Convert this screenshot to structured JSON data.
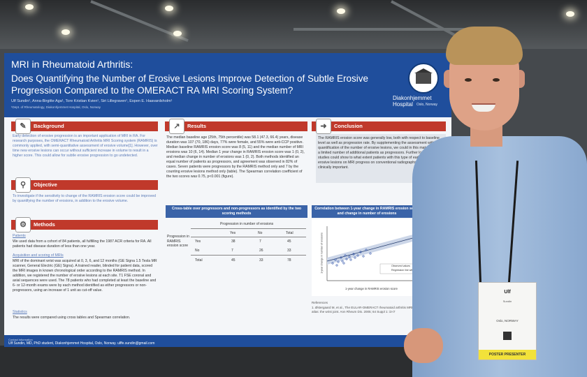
{
  "poster": {
    "title_line1": "MRI in Rheumatoid Arthritis:",
    "title_line2": "Does Quantifying the Number of Erosive Lesions Improve Detection of Subtle Erosive Progression Compared to the OMERACT RA MRI Scoring System?",
    "authors": "Ulf Sundin¹, Anna-Birgitte Aga¹, Tore Kristian Kvien¹, Siri Lillegraven¹, Espen E. Haavardsholm¹",
    "affiliation": "¹Dept. of Rheumatology, Diakonhjemmet Hospital, Oslo, Norway",
    "hospital": "Diakonhjemmet Hospital",
    "hospital_city": "Oslo, Norway",
    "background": {
      "heading": "Background",
      "text": "Early detection of erosive progression is an important application of MRI in RA. For research purposes, the OMERACT Rheumatoid Arthritis MRI Scoring system (RAMRIS) is commonly applied, with semi-quantitative assessment of erosive volume[1]. However, over time new erosive lesions can occur without sufficient increase in volume to result in a higher score. This could allow for subtle erosive progression to go undetected."
    },
    "objective": {
      "heading": "Objective",
      "text": "To investigate if the sensitivity to change of the RAMRIS erosion score could be improved by quantifying the number of erosions, in addition to the erosive volume."
    },
    "methods": {
      "heading": "Methods",
      "patients_label": "Patients",
      "patients_text": "We used data from a cohort of 84 patients, all fulfilling the 1987 ACR criteria for RA. All patients had disease duration of less than one year.",
      "mri_label": "Acquisition and scoring of MRIs",
      "mri_text": "MRI of the dominant wrist was acquired at 0, 3, 6, and 12 months (GE Signa 1.5 Tesla MR scanner, General Electric (GE) Signa). A trained reader, blinded for patient data, scored the MRI images in known chronological order according to the RAMRIS method. In addition, we registered the number of erosive lesions at each site. T1 FSE coronal and axial sequences were used. The 78 patients who had completed at least the baseline and 6- or 12-month exams were by each method identified as either progressors or non-progressors, using an increase of 1 unit as cut-off value.",
      "stats_label": "Statistics",
      "stats_text": "The results were compared using cross tables and Spearman correlation."
    },
    "results": {
      "heading": "Results",
      "text": "The median baseline age (25th, 75th percentile) was 58.1 (47.3, 66.4) years, disease duration was 107 (70, 186) days, 77% were female, and 55% were anti-CCP positive. Median baseline RAMRIS erosion score was 8 (5, 11) and the median number of MRI erosions was 10 (6, 14). Median 1 year change in RAMRIS erosion score was 1 (0, 2), and median change in number of erosions was 1 (0, 2). Both methods identified an equal number of patients as progressors, and agreement was observed in 82% of cases. Seven patients were progressors by the RAMRIS method only and 7 by the counting erosive lesions method only (table). The Spearman correlation coefficient of the two scores was 0.75, p<0.001 (figure)."
    },
    "conclusion": {
      "heading": "Conclusion",
      "text": "The RAMRIS erosion score was generally low, both with respect to baseline level as well as progression rate. By supplementing the assessment with quantification of the number of erosive lesions, we could in this material identify a limited number of additional patients as progressors. Further longitudinal studies could show to what extent patients with this type of early minimal erosive lesions on MRI progress on conventional radiographs, and if this is clinically important."
    },
    "table": {
      "title": "Cross-table over progressors and non-progressors as identified by the two scoring methods",
      "group_header": "Progression in number of erosions",
      "row_group": "Progression in RAMRIS erosion score",
      "col_headers": [
        "Yes",
        "No",
        "Total"
      ],
      "rows": [
        {
          "label": "Yes",
          "values": [
            "38",
            "7",
            "45"
          ]
        },
        {
          "label": "No",
          "values": [
            "7",
            "26",
            "33"
          ]
        },
        {
          "label": "Total",
          "values": [
            "45",
            "33",
            "78"
          ]
        }
      ]
    },
    "figure": {
      "title": "Correlation between 1-year change in RAMRIS erosion score and change in number of erosions",
      "xlabel": "1-year change in RAMRIS erosion score",
      "ylabel": "1-year change in number of erosions",
      "legend": [
        "Observed values",
        "Regression line with CI"
      ]
    },
    "references": {
      "heading": "References",
      "item": "1.   Østergaard M, et al., The EULAR-OMERACT rheumatoid arthritis MRI reference image atlas: the wrist joint. Ann Rheum Dis. 2005; 64 Suppl 1: i3-i7"
    },
    "footer": {
      "label": "Contact information",
      "contact": "Ulf Sundin, MD, PhD student, Diakonhjemmet Hospital, Oslo, Norway. ulffe.sundin@gmail.com"
    }
  },
  "badge": {
    "name": "Ulf",
    "surname": "Sundin",
    "location": "Oslo, NORWAY",
    "ribbon": "POSTER PRESENTER"
  },
  "colors": {
    "poster_blue": "#1f4e9c",
    "section_red": "#c0392b",
    "shirt": "#9bb5d8"
  }
}
